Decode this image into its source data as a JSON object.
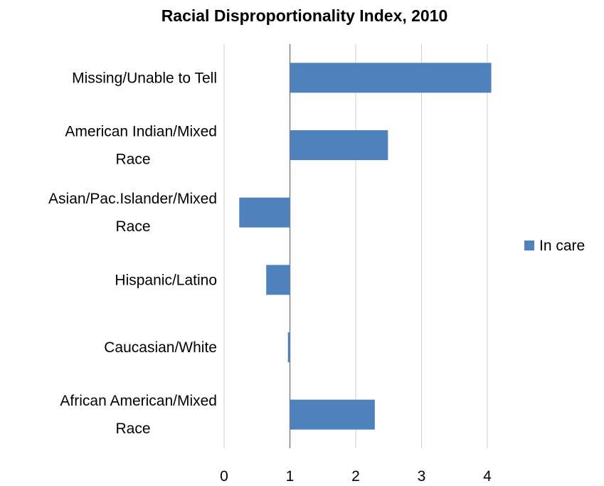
{
  "chart_data": {
    "type": "bar",
    "orientation": "horizontal",
    "title": "Racial Disproportionality Index, 2010",
    "categories": [
      [
        "Missing/Unable to Tell"
      ],
      [
        "American Indian/Mixed",
        "Race"
      ],
      [
        "Asian/Pac.Islander/Mixed",
        "Race"
      ],
      [
        "Hispanic/Latino"
      ],
      [
        "Caucasian/White"
      ],
      [
        "African American/Mixed",
        "Race"
      ]
    ],
    "series": [
      {
        "name": "In care",
        "color": "#4f81bd",
        "values": [
          4.06,
          2.49,
          0.23,
          0.64,
          0.97,
          2.29
        ]
      }
    ],
    "baseline": 1,
    "xlim": [
      0,
      4
    ],
    "xticks": [
      "0",
      "1",
      "2",
      "3",
      "4"
    ],
    "grid": true,
    "legend_position": "right"
  }
}
